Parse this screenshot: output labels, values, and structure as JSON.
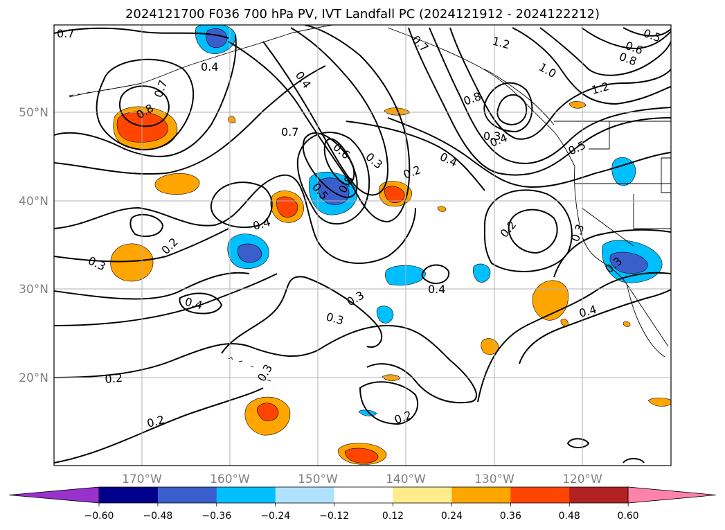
{
  "title": "2024121700 F036 700 hPa PV, IVT Landfall PC (2024121912 - 2024122212)",
  "map": {
    "lat_labels": [
      "50°N",
      "40°N",
      "30°N",
      "20°N"
    ],
    "lon_labels": [
      "170°W",
      "160°W",
      "150°W",
      "140°W",
      "130°W",
      "120°W"
    ]
  },
  "contour_labels": [
    "0.7",
    "0.4",
    "0.7",
    "0.8",
    "0.4",
    "0.7",
    "0.6",
    "0.3",
    "0.5",
    "0.8",
    "0.2",
    "0.4",
    "0.3",
    "0.2",
    "0.3",
    "0.4",
    "0.3",
    "0.4",
    "0.3",
    "0.2",
    "0.2",
    "0.4",
    "0.3",
    "1.2",
    "1.0",
    "0.8",
    "0.6",
    "0.5",
    "0.8",
    "1.2",
    "0.4",
    "0.5",
    "0.3",
    "0.2",
    "0.3",
    "0.2",
    "0.4",
    "0.7"
  ],
  "colorbar": {
    "ticks": [
      "−0.60",
      "−0.48",
      "−0.36",
      "−0.24",
      "−0.12",
      "0.12",
      "0.24",
      "0.36",
      "0.48",
      "0.60"
    ],
    "colors": [
      "#9932cc",
      "#00008b",
      "#3a5fcd",
      "#00bfff",
      "#b0e2ff",
      "#ffffff",
      "#ffec8b",
      "#ffa500",
      "#ff4500",
      "#b22222",
      "#ff82ab"
    ]
  }
}
